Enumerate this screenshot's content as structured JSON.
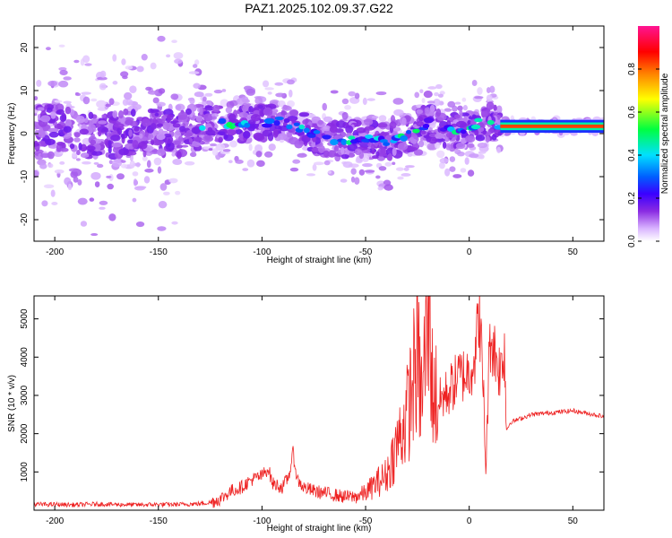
{
  "title": "PAZ1.2025.102.09.37.G22",
  "chart_data": [
    {
      "type": "heatmap",
      "xlabel": "Height of straight line (km)",
      "ylabel": "Frequency (Hz)",
      "xlim": [
        -210,
        65
      ],
      "ylim": [
        -25,
        25
      ],
      "xticks": [
        -200,
        -150,
        -100,
        -50,
        0,
        50
      ],
      "yticks": [
        -20,
        -10,
        0,
        10,
        20
      ],
      "colorbar": {
        "label": "Normalized spectral amplitude",
        "range": [
          0,
          1
        ],
        "ticks": [
          0.0,
          0.2,
          0.4,
          0.6,
          0.8
        ],
        "colors": [
          "#ffffff",
          "#d9b3ff",
          "#8a2be2",
          "#3a00ff",
          "#0060ff",
          "#00e0ff",
          "#00ff40",
          "#ffff00",
          "#ff8000",
          "#ff0000",
          "#ff1493"
        ]
      },
      "ridge": [
        {
          "x": -200,
          "f": 1.5
        },
        {
          "x": -180,
          "f": -1.0
        },
        {
          "x": -160,
          "f": 0.5
        },
        {
          "x": -140,
          "f": 0.0
        },
        {
          "x": -125,
          "f": 2.5
        },
        {
          "x": -110,
          "f": 2.2
        },
        {
          "x": -100,
          "f": 2.5
        },
        {
          "x": -90,
          "f": 3.0
        },
        {
          "x": -80,
          "f": 1.0
        },
        {
          "x": -70,
          "f": -1.0
        },
        {
          "x": -60,
          "f": -1.5
        },
        {
          "x": -50,
          "f": -1.0
        },
        {
          "x": -40,
          "f": -2.0
        },
        {
          "x": -30,
          "f": -0.5
        },
        {
          "x": -20,
          "f": 2.5
        },
        {
          "x": -15,
          "f": 1.2
        },
        {
          "x": -10,
          "f": 0.8
        },
        {
          "x": 0,
          "f": 0.8
        },
        {
          "x": 5,
          "f": 3.0
        },
        {
          "x": 10,
          "f": 2.5
        },
        {
          "x": 15,
          "f": 1.7
        },
        {
          "x": 30,
          "f": 1.7
        },
        {
          "x": 50,
          "f": 1.7
        },
        {
          "x": 65,
          "f": 1.7
        }
      ]
    },
    {
      "type": "line",
      "xlabel": "Height of straight line (km)",
      "ylabel": "SNR (10 * v/v)",
      "xlim": [
        -210,
        65
      ],
      "ylim": [
        0,
        5600
      ],
      "xticks": [
        -200,
        -150,
        -100,
        -50,
        0,
        50
      ],
      "yticks": [
        1000,
        2000,
        3000,
        4000,
        5000
      ],
      "color": "#ee2222",
      "series": [
        {
          "x": [
            -210,
            -200,
            -190,
            -180,
            -170,
            -160,
            -150,
            -140,
            -130,
            -125,
            -120,
            -115,
            -110,
            -105,
            -100,
            -97,
            -95,
            -90,
            -87,
            -85,
            -83,
            -80,
            -75,
            -70,
            -65,
            -60,
            -55,
            -50,
            -45,
            -40,
            -35,
            -30,
            -27,
            -25,
            -23,
            -20,
            -19,
            -18,
            -15,
            -10,
            -5,
            0,
            3,
            5,
            7,
            8,
            10,
            15,
            17,
            18,
            20,
            25,
            30,
            40,
            50,
            60,
            65
          ],
          "y": [
            150,
            150,
            140,
            160,
            150,
            140,
            150,
            150,
            170,
            200,
            300,
            500,
            600,
            800,
            900,
            1100,
            700,
            600,
            900,
            1500,
            800,
            600,
            500,
            450,
            400,
            350,
            350,
            450,
            700,
            900,
            1700,
            2500,
            3400,
            4100,
            2900,
            4800,
            5600,
            3300,
            2800,
            3100,
            3500,
            3600,
            4100,
            5200,
            2900,
            1000,
            4600,
            3600,
            4300,
            2100,
            2300,
            2400,
            2500,
            2550,
            2600,
            2500,
            2450
          ]
        }
      ]
    }
  ]
}
